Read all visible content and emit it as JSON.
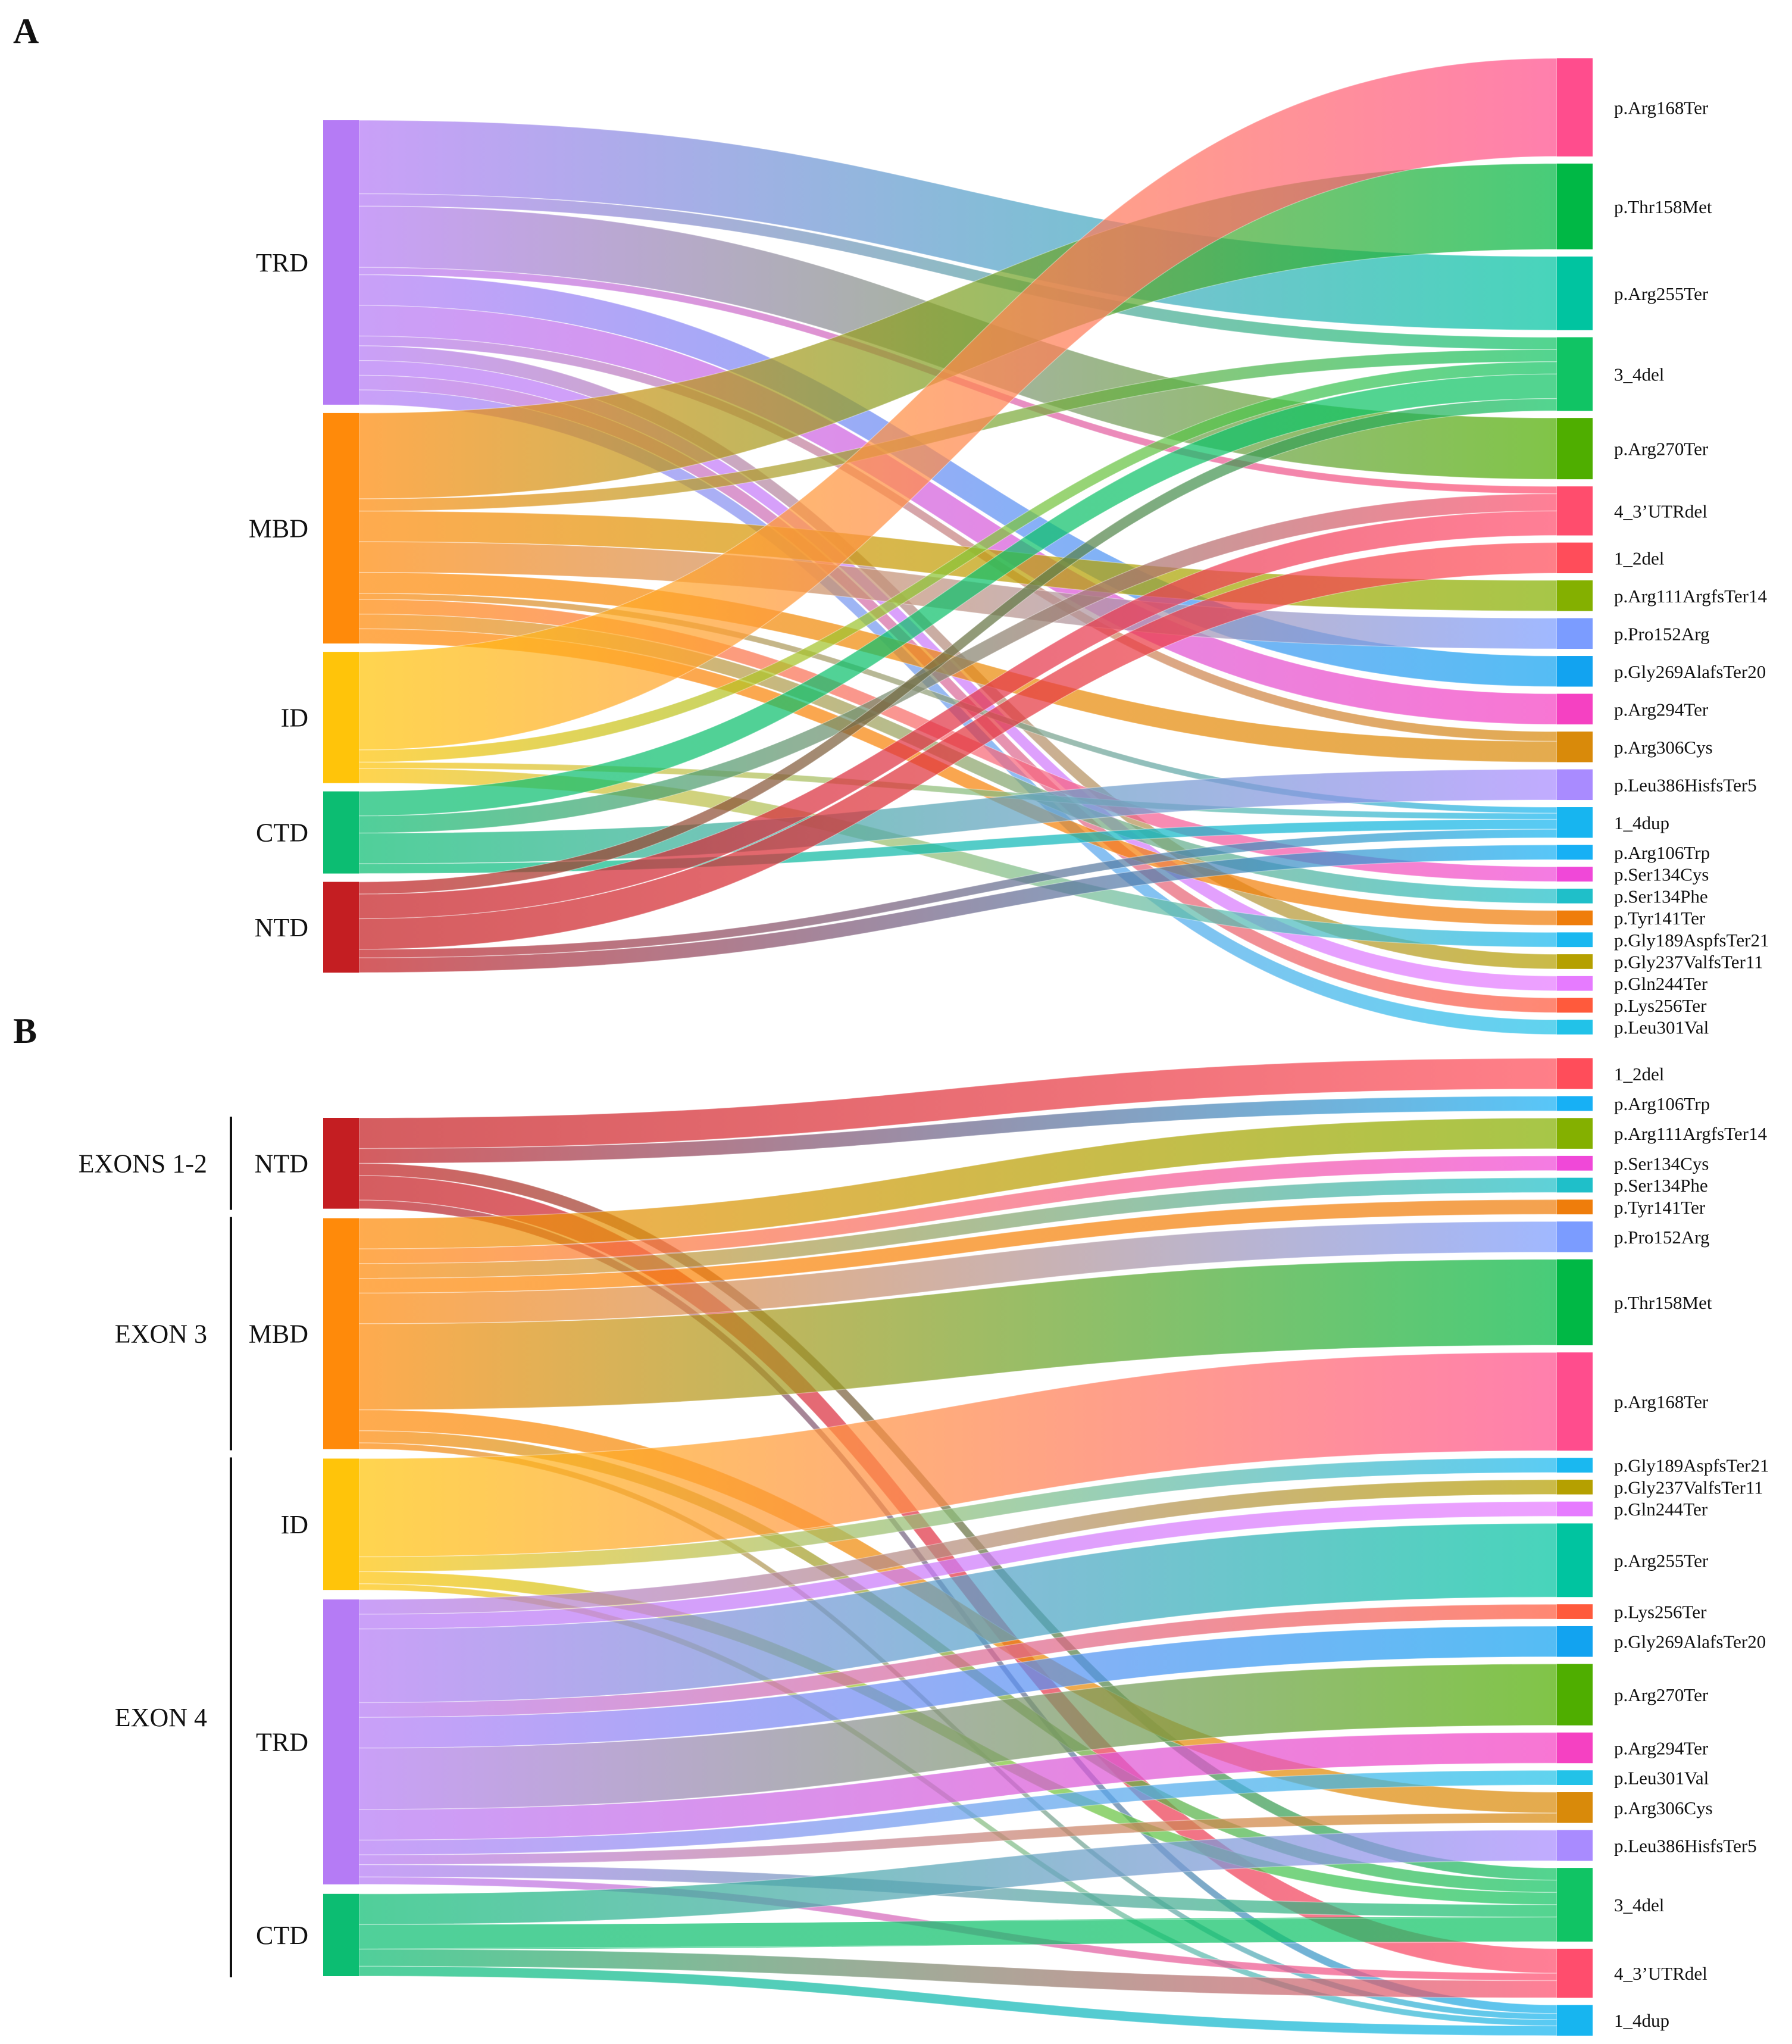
{
  "panels": [
    {
      "id": "A",
      "letter": "A",
      "sources": [
        {
          "label": "TRD",
          "color": "#b57bf5"
        },
        {
          "label": "MBD",
          "color": "#ff8a0a"
        },
        {
          "label": "ID",
          "color": "#ffc40a"
        },
        {
          "label": "CTD",
          "color": "#0cbd72"
        },
        {
          "label": "NTD",
          "color": "#c41e22"
        }
      ],
      "targets": [
        {
          "label": "p.Arg168Ter",
          "color": "#ff4d8d",
          "value": 8
        },
        {
          "label": "p.Thr158Met",
          "color": "#00b845",
          "value": 7
        },
        {
          "label": "p.Arg255Ter",
          "color": "#00c4a0",
          "value": 6
        },
        {
          "label": "3_4del",
          "color": "#10c464",
          "value": 6
        },
        {
          "label": "p.Arg270Ter",
          "color": "#4fae00",
          "value": 5
        },
        {
          "label": "4_3’UTRdel",
          "color": "#ff4d6d",
          "value": 4
        },
        {
          "label": "1_2del",
          "color": "#ff4d5a",
          "value": 2.5
        },
        {
          "label": "p.Arg111ArgfsTer14",
          "color": "#84b000",
          "value": 2.5
        },
        {
          "label": "p.Pro152Arg",
          "color": "#7b9cff",
          "value": 2.5
        },
        {
          "label": "p.Gly269AlafsTer20",
          "color": "#12a3f0",
          "value": 2.5
        },
        {
          "label": "p.Arg294Ter",
          "color": "#f541c2",
          "value": 2.5
        },
        {
          "label": "p.Arg306Cys",
          "color": "#d98a0a",
          "value": 2.5
        },
        {
          "label": "p.Leu386HisfsTer5",
          "color": "#a98bff",
          "value": 2.5
        },
        {
          "label": "1_4dup",
          "color": "#17b5f0",
          "value": 2.5
        },
        {
          "label": "p.Arg106Trp",
          "color": "#17b0f5",
          "value": 1.2
        },
        {
          "label": "p.Ser134Cys",
          "color": "#f048d8",
          "value": 1.2
        },
        {
          "label": "p.Ser134Phe",
          "color": "#1fbfc9",
          "value": 1.2
        },
        {
          "label": "p.Tyr141Ter",
          "color": "#ef7d0b",
          "value": 1.2
        },
        {
          "label": "p.Gly189AspfsTer21",
          "color": "#1ab8f0",
          "value": 1.2
        },
        {
          "label": "p.Gly237ValfsTer11",
          "color": "#b5a000",
          "value": 1.2
        },
        {
          "label": "p.Gln244Ter",
          "color": "#e67bff",
          "value": 1.2
        },
        {
          "label": "p.Lys256Ter",
          "color": "#ff5a3c",
          "value": 1.2
        },
        {
          "label": "p.Leu301Val",
          "color": "#22c2e8",
          "value": 1.2
        }
      ],
      "links": [
        {
          "source": "TRD",
          "target": "p.Arg255Ter",
          "value": 6
        },
        {
          "source": "TRD",
          "target": "p.Arg270Ter",
          "value": 5
        },
        {
          "source": "TRD",
          "target": "3_4del",
          "value": 1
        },
        {
          "source": "TRD",
          "target": "4_3’UTRdel",
          "value": 0.6
        },
        {
          "source": "TRD",
          "target": "p.Gly269AlafsTer20",
          "value": 2.5
        },
        {
          "source": "TRD",
          "target": "p.Arg294Ter",
          "value": 2.5
        },
        {
          "source": "TRD",
          "target": "p.Arg306Cys",
          "value": 0.8
        },
        {
          "source": "TRD",
          "target": "p.Gly237ValfsTer11",
          "value": 1.2
        },
        {
          "source": "TRD",
          "target": "p.Gln244Ter",
          "value": 1.2
        },
        {
          "source": "TRD",
          "target": "p.Lys256Ter",
          "value": 1.2
        },
        {
          "source": "TRD",
          "target": "p.Leu301Val",
          "value": 1.2
        },
        {
          "source": "MBD",
          "target": "p.Thr158Met",
          "value": 7
        },
        {
          "source": "MBD",
          "target": "3_4del",
          "value": 1
        },
        {
          "source": "MBD",
          "target": "p.Arg111ArgfsTer14",
          "value": 2.5
        },
        {
          "source": "MBD",
          "target": "p.Pro152Arg",
          "value": 2.5
        },
        {
          "source": "MBD",
          "target": "p.Arg306Cys",
          "value": 1.7
        },
        {
          "source": "MBD",
          "target": "1_4dup",
          "value": 0.5
        },
        {
          "source": "MBD",
          "target": "p.Ser134Cys",
          "value": 1.2
        },
        {
          "source": "MBD",
          "target": "p.Ser134Phe",
          "value": 1.2
        },
        {
          "source": "MBD",
          "target": "p.Tyr141Ter",
          "value": 1.2
        },
        {
          "source": "ID",
          "target": "p.Arg168Ter",
          "value": 8
        },
        {
          "source": "ID",
          "target": "3_4del",
          "value": 1
        },
        {
          "source": "ID",
          "target": "1_4dup",
          "value": 0.5
        },
        {
          "source": "ID",
          "target": "p.Gly189AspfsTer21",
          "value": 1.2
        },
        {
          "source": "CTD",
          "target": "3_4del",
          "value": 2
        },
        {
          "source": "CTD",
          "target": "4_3’UTRdel",
          "value": 1.4
        },
        {
          "source": "CTD",
          "target": "p.Leu386HisfsTer5",
          "value": 2.5
        },
        {
          "source": "CTD",
          "target": "1_4dup",
          "value": 0.8
        },
        {
          "source": "NTD",
          "target": "1_2del",
          "value": 2.5
        },
        {
          "source": "NTD",
          "target": "3_4del",
          "value": 1
        },
        {
          "source": "NTD",
          "target": "4_3’UTRdel",
          "value": 2
        },
        {
          "source": "NTD",
          "target": "1_4dup",
          "value": 0.7
        },
        {
          "source": "NTD",
          "target": "p.Arg106Trp",
          "value": 1.2
        }
      ]
    },
    {
      "id": "B",
      "letter": "B",
      "exons": [
        {
          "label": "EXONS 1-2",
          "span": [
            "NTD",
            "NTD"
          ]
        },
        {
          "label": "EXON 3",
          "span": [
            "MBD",
            "MBD"
          ]
        },
        {
          "label": "EXON 4",
          "span": [
            "ID",
            "CTD"
          ]
        }
      ],
      "sources": [
        {
          "label": "NTD",
          "color": "#c41e22"
        },
        {
          "label": "MBD",
          "color": "#ff8a0a"
        },
        {
          "label": "ID",
          "color": "#ffc40a"
        },
        {
          "label": "TRD",
          "color": "#b57bf5"
        },
        {
          "label": "CTD",
          "color": "#0cbd72"
        }
      ],
      "targets": [
        {
          "label": "1_2del",
          "color": "#ff4d5a",
          "value": 2.5
        },
        {
          "label": "p.Arg106Trp",
          "color": "#17b0f5",
          "value": 1.2
        },
        {
          "label": "p.Arg111ArgfsTer14",
          "color": "#84b000",
          "value": 2.5
        },
        {
          "label": "p.Ser134Cys",
          "color": "#f048d8",
          "value": 1.2
        },
        {
          "label": "p.Ser134Phe",
          "color": "#1fbfc9",
          "value": 1.2
        },
        {
          "label": "p.Tyr141Ter",
          "color": "#ef7d0b",
          "value": 1.2
        },
        {
          "label": "p.Pro152Arg",
          "color": "#7b9cff",
          "value": 2.5
        },
        {
          "label": "p.Thr158Met",
          "color": "#00b845",
          "value": 7
        },
        {
          "label": "p.Arg168Ter",
          "color": "#ff4d8d",
          "value": 8
        },
        {
          "label": "p.Gly189AspfsTer21",
          "color": "#1ab8f0",
          "value": 1.2
        },
        {
          "label": "p.Gly237ValfsTer11",
          "color": "#b5a000",
          "value": 1.2
        },
        {
          "label": "p.Gln244Ter",
          "color": "#e67bff",
          "value": 1.2
        },
        {
          "label": "p.Arg255Ter",
          "color": "#00c4a0",
          "value": 6
        },
        {
          "label": "p.Lys256Ter",
          "color": "#ff5a3c",
          "value": 1.2
        },
        {
          "label": "p.Gly269AlafsTer20",
          "color": "#12a3f0",
          "value": 2.5
        },
        {
          "label": "p.Arg270Ter",
          "color": "#4fae00",
          "value": 5
        },
        {
          "label": "p.Arg294Ter",
          "color": "#f541c2",
          "value": 2.5
        },
        {
          "label": "p.Leu301Val",
          "color": "#22c2e8",
          "value": 1.2
        },
        {
          "label": "p.Arg306Cys",
          "color": "#d98a0a",
          "value": 2.5
        },
        {
          "label": "p.Leu386HisfsTer5",
          "color": "#a98bff",
          "value": 2.5
        },
        {
          "label": "3_4del",
          "color": "#10c464",
          "value": 6
        },
        {
          "label": "4_3’UTRdel",
          "color": "#ff4d6d",
          "value": 4
        },
        {
          "label": "1_4dup",
          "color": "#17b5f0",
          "value": 2.5
        }
      ],
      "links": [
        {
          "source": "NTD",
          "target": "1_2del",
          "value": 2.5
        },
        {
          "source": "NTD",
          "target": "3_4del",
          "value": 1
        },
        {
          "source": "NTD",
          "target": "4_3’UTRdel",
          "value": 2
        },
        {
          "source": "NTD",
          "target": "1_4dup",
          "value": 0.7
        },
        {
          "source": "NTD",
          "target": "p.Arg106Trp",
          "value": 1.2
        },
        {
          "source": "MBD",
          "target": "p.Arg111ArgfsTer14",
          "value": 2.5
        },
        {
          "source": "MBD",
          "target": "p.Ser134Cys",
          "value": 1.2
        },
        {
          "source": "MBD",
          "target": "p.Ser134Phe",
          "value": 1.2
        },
        {
          "source": "MBD",
          "target": "p.Tyr141Ter",
          "value": 1.2
        },
        {
          "source": "MBD",
          "target": "p.Pro152Arg",
          "value": 2.5
        },
        {
          "source": "MBD",
          "target": "p.Thr158Met",
          "value": 7
        },
        {
          "source": "MBD",
          "target": "3_4del",
          "value": 1
        },
        {
          "source": "MBD",
          "target": "p.Arg306Cys",
          "value": 1.7
        },
        {
          "source": "MBD",
          "target": "1_4dup",
          "value": 0.5
        },
        {
          "source": "ID",
          "target": "p.Arg168Ter",
          "value": 8
        },
        {
          "source": "ID",
          "target": "p.Gly189AspfsTer21",
          "value": 1.2
        },
        {
          "source": "ID",
          "target": "3_4del",
          "value": 1
        },
        {
          "source": "ID",
          "target": "1_4dup",
          "value": 0.5
        },
        {
          "source": "TRD",
          "target": "p.Gly237ValfsTer11",
          "value": 1.2
        },
        {
          "source": "TRD",
          "target": "p.Gln244Ter",
          "value": 1.2
        },
        {
          "source": "TRD",
          "target": "p.Arg255Ter",
          "value": 6
        },
        {
          "source": "TRD",
          "target": "p.Lys256Ter",
          "value": 1.2
        },
        {
          "source": "TRD",
          "target": "p.Gly269AlafsTer20",
          "value": 2.5
        },
        {
          "source": "TRD",
          "target": "p.Arg270Ter",
          "value": 5
        },
        {
          "source": "TRD",
          "target": "p.Arg294Ter",
          "value": 2.5
        },
        {
          "source": "TRD",
          "target": "p.Leu301Val",
          "value": 1.2
        },
        {
          "source": "TRD",
          "target": "p.Arg306Cys",
          "value": 0.8
        },
        {
          "source": "TRD",
          "target": "3_4del",
          "value": 1
        },
        {
          "source": "TRD",
          "target": "4_3’UTRdel",
          "value": 0.6
        },
        {
          "source": "CTD",
          "target": "p.Leu386HisfsTer5",
          "value": 2.5
        },
        {
          "source": "CTD",
          "target": "3_4del",
          "value": 2
        },
        {
          "source": "CTD",
          "target": "4_3’UTRdel",
          "value": 1.4
        },
        {
          "source": "CTD",
          "target": "1_4dup",
          "value": 0.8
        }
      ]
    }
  ]
}
